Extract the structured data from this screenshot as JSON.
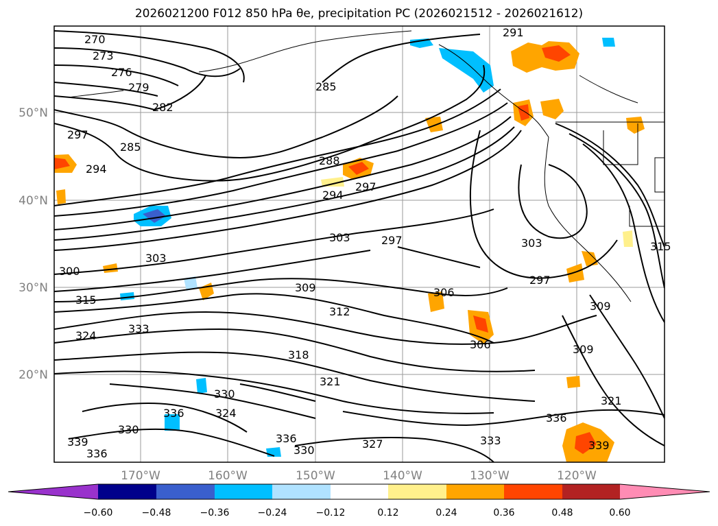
{
  "title": "2026021200 F012 850 hPa θe, precipitation PC (2026021512 - 2026021612)",
  "lat_labels": [
    "50°N",
    "40°N",
    "30°N",
    "20°N"
  ],
  "lon_labels": [
    "170°W",
    "160°W",
    "150°W",
    "140°W",
    "130°W",
    "120°W"
  ],
  "contour_labels": [
    "270",
    "273",
    "276",
    "279",
    "282",
    "285",
    "288",
    "291",
    "294",
    "297",
    "300",
    "303",
    "306",
    "309",
    "312",
    "315",
    "318",
    "321",
    "324",
    "327",
    "330",
    "333",
    "336",
    "339"
  ],
  "colorbar": {
    "ticks": [
      "−0.60",
      "−0.48",
      "−0.36",
      "−0.24",
      "−0.12",
      "0.12",
      "0.24",
      "0.36",
      "0.48",
      "0.60"
    ],
    "colors": [
      "#9932cc",
      "#00008b",
      "#3a5fcd",
      "#00bfff",
      "#b0e2ff",
      "#ffffff",
      "#fff08c",
      "#ffa500",
      "#ff4500",
      "#b22222",
      "#ff8cb4"
    ]
  }
}
